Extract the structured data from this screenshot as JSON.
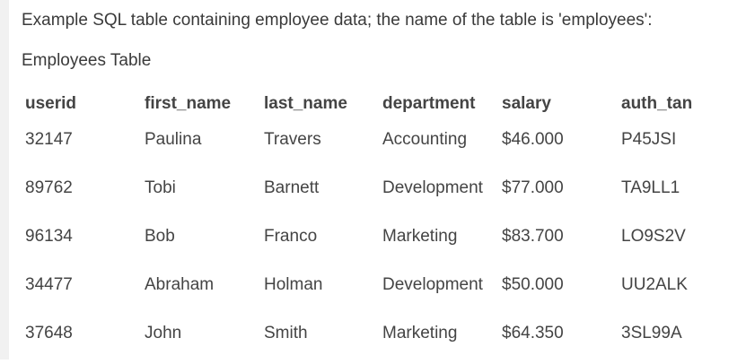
{
  "intro_text": "Example SQL table containing employee data; the name of the table is 'employees':",
  "table_title": "Employees Table",
  "columns": [
    "userid",
    "first_name",
    "last_name",
    "department",
    "salary",
    "auth_tan"
  ],
  "rows": [
    [
      "32147",
      "Paulina",
      "Travers",
      "Accounting",
      "$46.000",
      "P45JSI"
    ],
    [
      "89762",
      "Tobi",
      "Barnett",
      "Development",
      "$77.000",
      "TA9LL1"
    ],
    [
      "96134",
      "Bob",
      "Franco",
      "Marketing",
      "$83.700",
      "LO9S2V"
    ],
    [
      "34477",
      "Abraham",
      "Holman",
      "Development",
      "$50.000",
      "UU2ALK"
    ],
    [
      "37648",
      "John",
      "Smith",
      "Marketing",
      "$64.350",
      "3SL99A"
    ]
  ]
}
